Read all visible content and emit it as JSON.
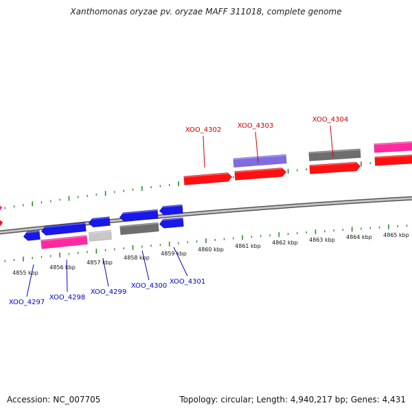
{
  "title": "Xanthomonas oryzae pv. oryzae MAFF 311018, complete genome",
  "footer": {
    "accession": "Accession: NC_007705",
    "stats": "Topology: circular; Length: 4,940,217 bp; Genes: 4,431"
  },
  "colors": {
    "backbone": "#8a8a8a",
    "tick": "#2a8a2a",
    "label_forward": "#cc0000",
    "label_reverse": "#0000cc",
    "gene_red": "#ff1010",
    "gene_blue": "#1818e8",
    "gene_pink": "#ff2aa0",
    "gene_purple": "#7e6ce0",
    "gene_gray": "#6e6e6e",
    "gene_lightgray": "#c8c8c8"
  },
  "scale": {
    "unit": "kbp",
    "ticks": [
      {
        "label": "4855 kbp"
      },
      {
        "label": "4856 kbp"
      },
      {
        "label": "4857 kbp"
      },
      {
        "label": "4858 kbp"
      },
      {
        "label": "4859 kbp"
      },
      {
        "label": "4860 kbp"
      },
      {
        "label": "4861 kbp"
      },
      {
        "label": "4862 kbp"
      },
      {
        "label": "4863 kbp"
      },
      {
        "label": "4864 kbp"
      },
      {
        "label": "4865 kbp"
      }
    ]
  },
  "gene_labels": {
    "forward": [
      {
        "name": "XOO_4302"
      },
      {
        "name": "XOO_4303"
      },
      {
        "name": "XOO_4304"
      }
    ],
    "reverse": [
      {
        "name": "XOO_4297"
      },
      {
        "name": "XOO_4298"
      },
      {
        "name": "XOO_4299"
      },
      {
        "name": "XOO_4300"
      },
      {
        "name": "XOO_4301"
      }
    ]
  }
}
